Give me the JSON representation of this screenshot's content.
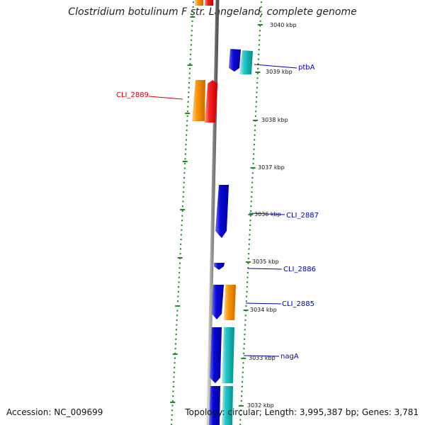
{
  "title": "Clostridium botulinum F str. Langeland, complete genome",
  "accession": "Accession: NC_009699",
  "topology": "Topology: circular; Length: 3,995,387 bp; Genes: 3,781",
  "kbp_labels": [
    "3040 kbp",
    "3039 kbp",
    "3038 kbp",
    "3037 kbp",
    "3036 kbp",
    "3035 kbp",
    "3034 kbp",
    "3033 kbp",
    "3032 kbp"
  ],
  "gene_labels": [
    "ptbA",
    "CLI_2889",
    "CLI_2887",
    "CLI_2886",
    "CLI_2885",
    "nagA"
  ],
  "colors": {
    "forward_cds": "#ff2222",
    "forward_gene": "#ff9900",
    "reverse_cds": "#0a0adc",
    "reverse_gene": "#22c8c8",
    "backbone": "#888888",
    "tick": "#1e8c1e",
    "label_forward": "#d40000",
    "label_reverse": "#0000b4"
  }
}
